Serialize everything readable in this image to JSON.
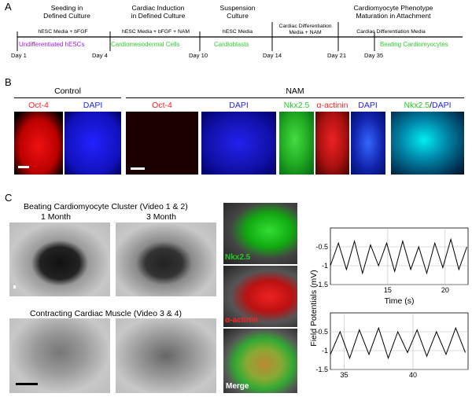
{
  "panelA": {
    "letter": "A",
    "stages": [
      {
        "title": "Seeding in\nDefined Culture",
        "media": "hESC Media + bFGF",
        "cell": "Undifferentiated hESCs",
        "cell_color": "#a020f0"
      },
      {
        "title": "Cardiac Induction\nin Defined Culture",
        "media": "hESC Media + bFGF + NAM",
        "cell": "Cardiomesodermal Cells",
        "cell_color": "#33cc33"
      },
      {
        "title": "Suspension\nCulture",
        "media": "hESC Media",
        "cell": "Cardioblasts",
        "cell_color": "#33cc33"
      },
      {
        "title": "",
        "media": "Cardiac Differentiation\nMedia + NAM",
        "cell": "",
        "cell_color": "#33cc33"
      },
      {
        "title": "Cardiomyocyte Phenotype\nMaturation in Attachment",
        "media": "Cardiac Differentiation Media",
        "cell": "Beating Cardiomyocytes",
        "cell_color": "#33cc33"
      }
    ],
    "days": [
      "Day 1",
      "Day 4",
      "Day 10",
      "Day 14",
      "Day 21",
      "Day 35"
    ]
  },
  "panelB": {
    "letter": "B",
    "control_header": "Control",
    "nam_header": "NAM",
    "labels": {
      "oct4_a": "Oct-4",
      "dapi_a": "DAPI",
      "oct4_b": "Oct-4",
      "dapi_b": "DAPI",
      "nkx": "Nkx2.5",
      "actinin": "α-actinin",
      "dapi_c": "DAPI",
      "merge_nkx": "Nkx2.5",
      "merge_slash": "/",
      "merge_dapi": "DAPI"
    },
    "colors": {
      "red": "#ff2020",
      "blue": "#2020ff",
      "green": "#22cc22",
      "cyan": "#00ccdd"
    }
  },
  "panelC": {
    "letter": "C",
    "beating_title": "Beating Cardiomyocyte Cluster (Video 1 & 2)",
    "month1": "1 Month",
    "month3": "3 Month",
    "contracting_title": "Contracting Cardiac Muscle (Video 3 & 4)",
    "fluor_labels": {
      "nkx": "Nkx2.5",
      "actinin": "α-actinin",
      "merge": "Merge"
    }
  },
  "chart_data": [
    {
      "type": "line",
      "title": "",
      "xlabel": "Time (s)",
      "ylabel": "Field Potentials (mV)",
      "xlim": [
        10,
        22
      ],
      "ylim": [
        -1.5,
        0
      ],
      "x_ticks": [
        15,
        20
      ],
      "y_ticks": [
        -0.5,
        -1,
        -1.5
      ],
      "series": [
        {
          "x": [
            10,
            10.7,
            11.4,
            12.1,
            12.8,
            13.5,
            14.2,
            14.9,
            15.6,
            16.3,
            17.0,
            17.7,
            18.4,
            19.1,
            19.8,
            20.5,
            21.2,
            21.9
          ],
          "values": [
            -1.0,
            -0.4,
            -1.1,
            -0.35,
            -1.2,
            -0.45,
            -1.0,
            -0.4,
            -1.15,
            -0.35,
            -1.1,
            -0.5,
            -1.2,
            -0.4,
            -1.05,
            -0.3,
            -1.1,
            -0.5
          ]
        }
      ]
    },
    {
      "type": "line",
      "title": "",
      "xlabel": "",
      "ylabel": "Field Potentials (mV)",
      "xlim": [
        34,
        44
      ],
      "ylim": [
        -1.5,
        0
      ],
      "x_ticks": [
        35,
        40
      ],
      "y_ticks": [
        -0.5,
        -1,
        -1.5
      ],
      "series": [
        {
          "x": [
            34,
            34.7,
            35.4,
            36.1,
            36.8,
            37.5,
            38.2,
            38.9,
            39.6,
            40.3,
            41.0,
            41.7,
            42.4,
            43.1,
            43.8
          ],
          "values": [
            -1.1,
            -0.5,
            -1.2,
            -0.45,
            -1.1,
            -0.4,
            -1.2,
            -0.5,
            -1.05,
            -0.45,
            -1.15,
            -0.5,
            -1.1,
            -0.4,
            -1.05
          ]
        }
      ]
    }
  ]
}
